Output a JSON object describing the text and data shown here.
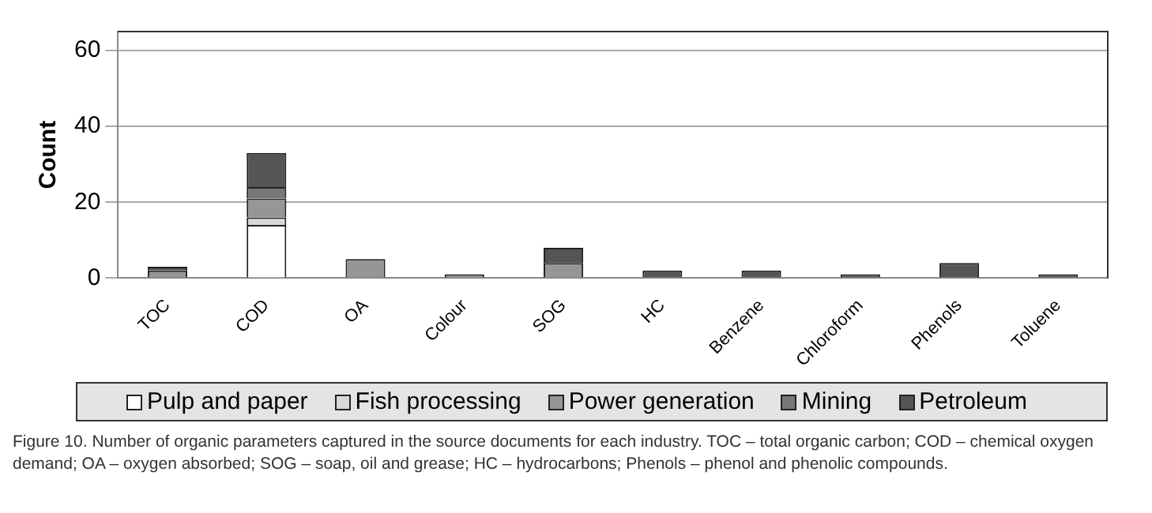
{
  "chart_data": {
    "type": "bar",
    "stacked": true,
    "ylabel": "Count",
    "categories": [
      "TOC",
      "COD",
      "OA",
      "Colour",
      "SOG",
      "HC",
      "Benzene",
      "Chloroform",
      "Phenols",
      "Toluene"
    ],
    "series": [
      {
        "name": "Pulp and paper",
        "color": "#ffffff",
        "values": [
          0,
          14,
          0,
          0,
          0,
          0,
          0,
          0,
          0,
          0
        ]
      },
      {
        "name": "Fish processing",
        "color": "#d9d9d9",
        "values": [
          0,
          2,
          0,
          0,
          0,
          0,
          0,
          0,
          0,
          0
        ]
      },
      {
        "name": "Power generation",
        "color": "#969696",
        "values": [
          2,
          5,
          5,
          1,
          4,
          0,
          0,
          0,
          0,
          0
        ]
      },
      {
        "name": "Mining",
        "color": "#777777",
        "values": [
          0,
          3,
          0,
          0,
          0,
          0,
          0,
          0,
          0,
          0
        ]
      },
      {
        "name": "Petroleum",
        "color": "#555555",
        "values": [
          1,
          9,
          0,
          0,
          4,
          2,
          2,
          1,
          4,
          1
        ]
      }
    ],
    "ylim": [
      0,
      65
    ],
    "yticks": [
      0,
      20,
      40,
      60
    ],
    "grid": "y",
    "legend": "bottom",
    "annotations": [
      "Figure 10. Number of organic parameters captured in the source documents for each industry. TOC – total organic carbon; COD – chemical oxygen demand; OA – oxygen absorbed; SOG – soap, oil and grease; HC – hydrocarbons; Phenols – phenol and phenolic compounds."
    ]
  }
}
